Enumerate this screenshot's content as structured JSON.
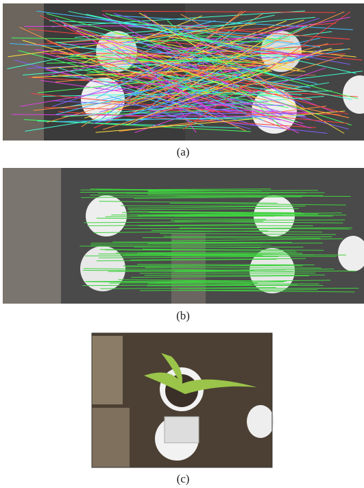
{
  "figures": [
    {
      "caption": "(a)"
    },
    {
      "caption": "(b)"
    },
    {
      "caption": "(c)"
    }
  ]
}
